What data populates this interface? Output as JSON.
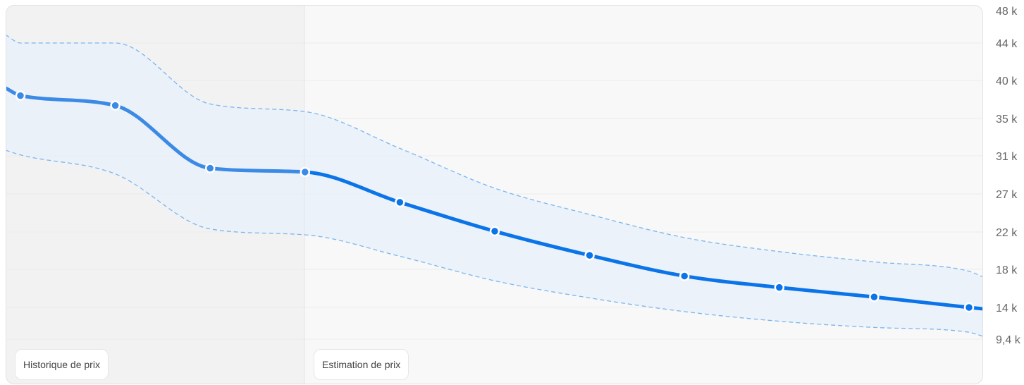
{
  "sections": {
    "history_label": "Historique de prix",
    "estimate_label": "Estimation de prix"
  },
  "colors": {
    "line": "#0a74e8",
    "line_history": "#3a8ae6",
    "band_stroke": "#7ab6ef",
    "band_fill": "#eaf1fa",
    "history_bg": "#f2f2f2",
    "estimate_bg": "#f8f8f8",
    "grid": "#ebebeb"
  },
  "chart_data": {
    "type": "line",
    "y_axis": {
      "position": "right",
      "ticks": [
        {
          "value": 48000,
          "label": "48 k"
        },
        {
          "value": 44000,
          "label": "44 k"
        },
        {
          "value": 40000,
          "label": "40 k"
        },
        {
          "value": 35000,
          "label": "35 k"
        },
        {
          "value": 31000,
          "label": "31 k"
        },
        {
          "value": 27000,
          "label": "27 k"
        },
        {
          "value": 22000,
          "label": "22 k"
        },
        {
          "value": 18000,
          "label": "18 k"
        },
        {
          "value": 14000,
          "label": "14 k"
        },
        {
          "value": 9400,
          "label": "9,4 k"
        }
      ]
    },
    "grid": true,
    "history_points": 4,
    "series": [
      {
        "role": "price",
        "values": [
          38000,
          36700,
          29700,
          29300,
          25900,
          22100,
          19500,
          17300,
          16100,
          15100,
          14000
        ],
        "start_value": 39000,
        "end_value": 13800
      },
      {
        "role": "upper_bound",
        "values": [
          44000,
          44000,
          36900,
          35900,
          31800,
          27600,
          24300,
          21400,
          19900,
          18800,
          17800
        ],
        "start_value": 45000,
        "end_value": 17200
      },
      {
        "role": "lower_bound",
        "values": [
          31100,
          29100,
          22400,
          21700,
          19400,
          16800,
          15000,
          13400,
          12000,
          11100,
          10400
        ],
        "start_value": 31600,
        "end_value": 9800
      }
    ]
  }
}
